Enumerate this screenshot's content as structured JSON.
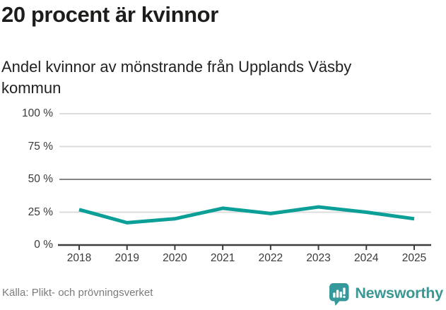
{
  "header": {
    "title": "20 procent är kvinnor",
    "subtitle": "Andel kvinnor av mönstrande från Upplands Väsby kommun"
  },
  "chart_data": {
    "type": "line",
    "x": [
      2018,
      2019,
      2020,
      2021,
      2022,
      2023,
      2024,
      2025
    ],
    "values": [
      27,
      17,
      20,
      28,
      24,
      29,
      25,
      20
    ],
    "x_tick_labels": [
      "2018",
      "2019",
      "2020",
      "2021",
      "2022",
      "2023",
      "2024",
      "2025"
    ],
    "y_tick_labels": [
      "100 %",
      "75 %",
      "50 %",
      "25 %",
      "0 %"
    ],
    "y_tick_values": [
      100,
      75,
      50,
      25,
      0
    ],
    "ylim": [
      0,
      100
    ],
    "grid": "horizontal",
    "emphasized_gridline_value": 50,
    "line_color": "#0c9f97",
    "gridline_color": "#dcdcdc",
    "emphasized_gridline_color": "#848484",
    "axis_color": "#3d3d3d",
    "legend": "none"
  },
  "footer": {
    "source": "Källa: Plikt- och prövningsverket",
    "brand": "Newsworthy",
    "brand_color": "#3a9794",
    "brand_icon": "speech-bubble-bar-chart-icon"
  }
}
